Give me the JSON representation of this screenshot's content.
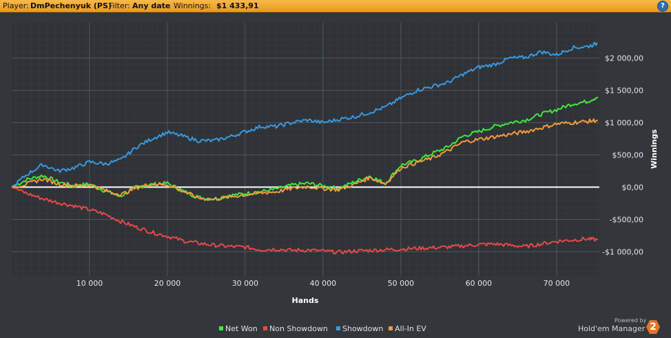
{
  "header": {
    "player_label": "Player:",
    "player_value": "DmPechenyuk (PS)",
    "filter_label": "Filter:",
    "filter_value": "Any date",
    "winnings_label": "Winnings:",
    "winnings_value": "$1 433,91",
    "help_glyph": "?"
  },
  "footer": {
    "powered_by": "Powered by",
    "brand": "Hold'em Manager",
    "logo_text": "2"
  },
  "chart_data": {
    "type": "line",
    "xlabel": "Hands",
    "ylabel": "Winnings",
    "xlim": [
      0,
      75500
    ],
    "ylim": [
      -1380,
      2550
    ],
    "x_ticks": [
      10000,
      20000,
      30000,
      40000,
      50000,
      60000,
      70000
    ],
    "x_tick_labels": [
      "10 000",
      "20 000",
      "30 000",
      "40 000",
      "50 000",
      "60 000",
      "70 000"
    ],
    "y_ticks": [
      -1000,
      -500,
      0,
      500,
      1000,
      1500,
      2000
    ],
    "y_tick_labels": [
      "-$1 000,00",
      "-$500,00",
      "$0,00",
      "$500,00",
      "$1 000,00",
      "$1 500,00",
      "$2 000,00"
    ],
    "grid": true,
    "legend_position": "bottom",
    "zero_line_color": "#ffffff",
    "series": [
      {
        "name": "Net Won",
        "color": "#3ee83e",
        "x": [
          0,
          2000,
          4000,
          6000,
          8000,
          10000,
          12000,
          14000,
          16000,
          18000,
          20000,
          22000,
          24000,
          26000,
          28000,
          30000,
          32000,
          34000,
          36000,
          38000,
          40000,
          42000,
          44000,
          46000,
          48000,
          50000,
          52000,
          54000,
          56000,
          58000,
          60000,
          62000,
          64000,
          66000,
          68000,
          70000,
          72000,
          74000,
          75300
        ],
        "values": [
          0,
          120,
          180,
          80,
          20,
          50,
          -60,
          -140,
          0,
          40,
          60,
          -60,
          -160,
          -180,
          -130,
          -100,
          -70,
          -30,
          30,
          60,
          20,
          -20,
          80,
          170,
          60,
          340,
          410,
          520,
          620,
          790,
          860,
          940,
          1000,
          1040,
          1130,
          1200,
          1290,
          1330,
          1400
        ]
      },
      {
        "name": "Non Showdown",
        "color": "#e84848",
        "x": [
          0,
          2000,
          4000,
          6000,
          8000,
          10000,
          12000,
          14000,
          16000,
          18000,
          20000,
          22000,
          24000,
          26000,
          28000,
          30000,
          32000,
          34000,
          36000,
          38000,
          40000,
          42000,
          44000,
          46000,
          48000,
          50000,
          52000,
          54000,
          56000,
          58000,
          60000,
          62000,
          64000,
          66000,
          68000,
          70000,
          72000,
          74000,
          75300
        ],
        "values": [
          0,
          -100,
          -180,
          -240,
          -290,
          -350,
          -420,
          -530,
          -620,
          -700,
          -760,
          -830,
          -870,
          -900,
          -920,
          -930,
          -970,
          -960,
          -980,
          -975,
          -990,
          -1010,
          -990,
          -980,
          -970,
          -960,
          -950,
          -940,
          -930,
          -910,
          -890,
          -880,
          -900,
          -920,
          -880,
          -840,
          -820,
          -800,
          -820
        ]
      },
      {
        "name": "Showdown",
        "color": "#3a98e0",
        "x": [
          0,
          2000,
          4000,
          6000,
          8000,
          10000,
          12000,
          14000,
          16000,
          18000,
          20000,
          22000,
          24000,
          26000,
          28000,
          30000,
          32000,
          34000,
          36000,
          38000,
          40000,
          42000,
          44000,
          46000,
          48000,
          50000,
          52000,
          54000,
          56000,
          58000,
          60000,
          62000,
          64000,
          66000,
          68000,
          70000,
          72000,
          74000,
          75300
        ],
        "values": [
          0,
          200,
          350,
          250,
          300,
          390,
          360,
          420,
          620,
          750,
          850,
          790,
          720,
          720,
          780,
          860,
          940,
          940,
          1000,
          1040,
          1000,
          1050,
          1090,
          1160,
          1240,
          1380,
          1500,
          1560,
          1620,
          1750,
          1860,
          1900,
          2000,
          2010,
          2100,
          2050,
          2160,
          2180,
          2230
        ]
      },
      {
        "name": "All-In EV",
        "color": "#f49a3c",
        "x": [
          0,
          2000,
          4000,
          6000,
          8000,
          10000,
          12000,
          14000,
          16000,
          18000,
          20000,
          22000,
          24000,
          26000,
          28000,
          30000,
          32000,
          34000,
          36000,
          38000,
          40000,
          42000,
          44000,
          46000,
          48000,
          50000,
          52000,
          54000,
          56000,
          58000,
          60000,
          62000,
          64000,
          66000,
          68000,
          70000,
          72000,
          74000,
          75300
        ],
        "values": [
          0,
          50,
          130,
          50,
          20,
          40,
          -50,
          -120,
          -10,
          50,
          40,
          -60,
          -170,
          -190,
          -150,
          -120,
          -90,
          -70,
          -20,
          10,
          -20,
          -40,
          40,
          150,
          50,
          300,
          380,
          450,
          560,
          700,
          740,
          780,
          820,
          860,
          920,
          980,
          1000,
          1020,
          1040
        ]
      }
    ]
  }
}
